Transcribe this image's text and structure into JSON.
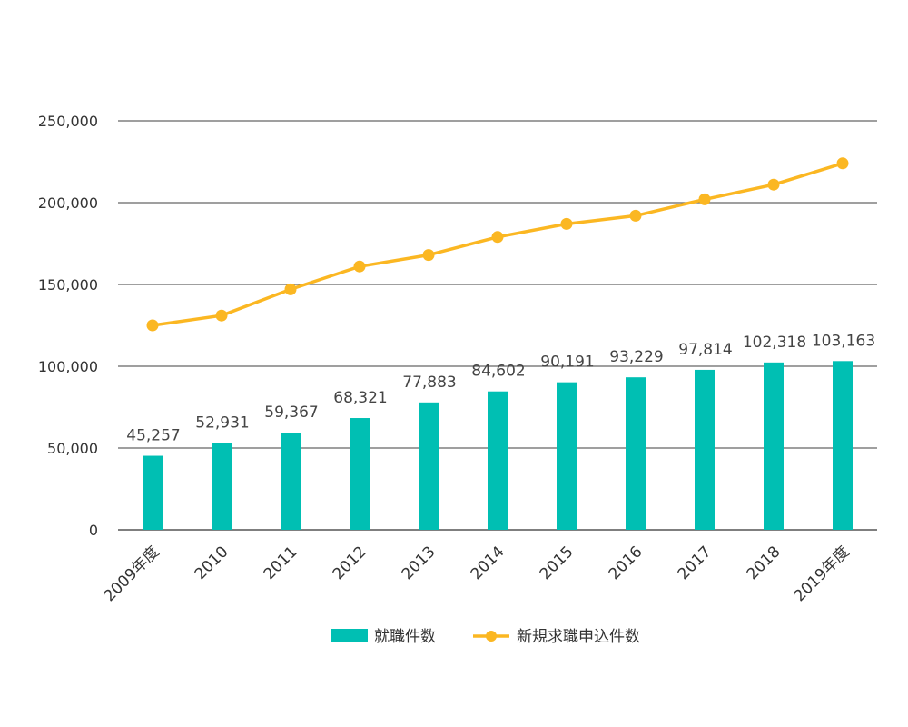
{
  "chart_data": {
    "type": "bar",
    "categories": [
      "2009年度",
      "2010",
      "2011",
      "2012",
      "2013",
      "2014",
      "2015",
      "2016",
      "2017",
      "2018",
      "2019年度"
    ],
    "ylim": [
      0,
      250000
    ],
    "y_ticks": [
      0,
      50000,
      100000,
      150000,
      200000,
      250000
    ],
    "y_tick_labels": [
      "0",
      "50,000",
      "100,000",
      "150,000",
      "200,000",
      "250,000"
    ],
    "grid": true,
    "legend_position": "bottom",
    "series": [
      {
        "name": "就職件数",
        "type": "bar",
        "color": "#00bfb3",
        "values": [
          45257,
          52931,
          59367,
          68321,
          77883,
          84602,
          90191,
          93229,
          97814,
          102318,
          103163
        ],
        "data_labels": [
          "45,257",
          "52,931",
          "59,367",
          "68,321",
          "77,883",
          "84,602",
          "90,191",
          "93,229",
          "97,814",
          "102,318",
          "103,163"
        ]
      },
      {
        "name": "新規求職申込件数",
        "type": "line",
        "color": "#fbb722",
        "values": [
          125000,
          131000,
          147000,
          161000,
          168000,
          179000,
          187000,
          192000,
          202000,
          211000,
          224000
        ]
      }
    ]
  }
}
